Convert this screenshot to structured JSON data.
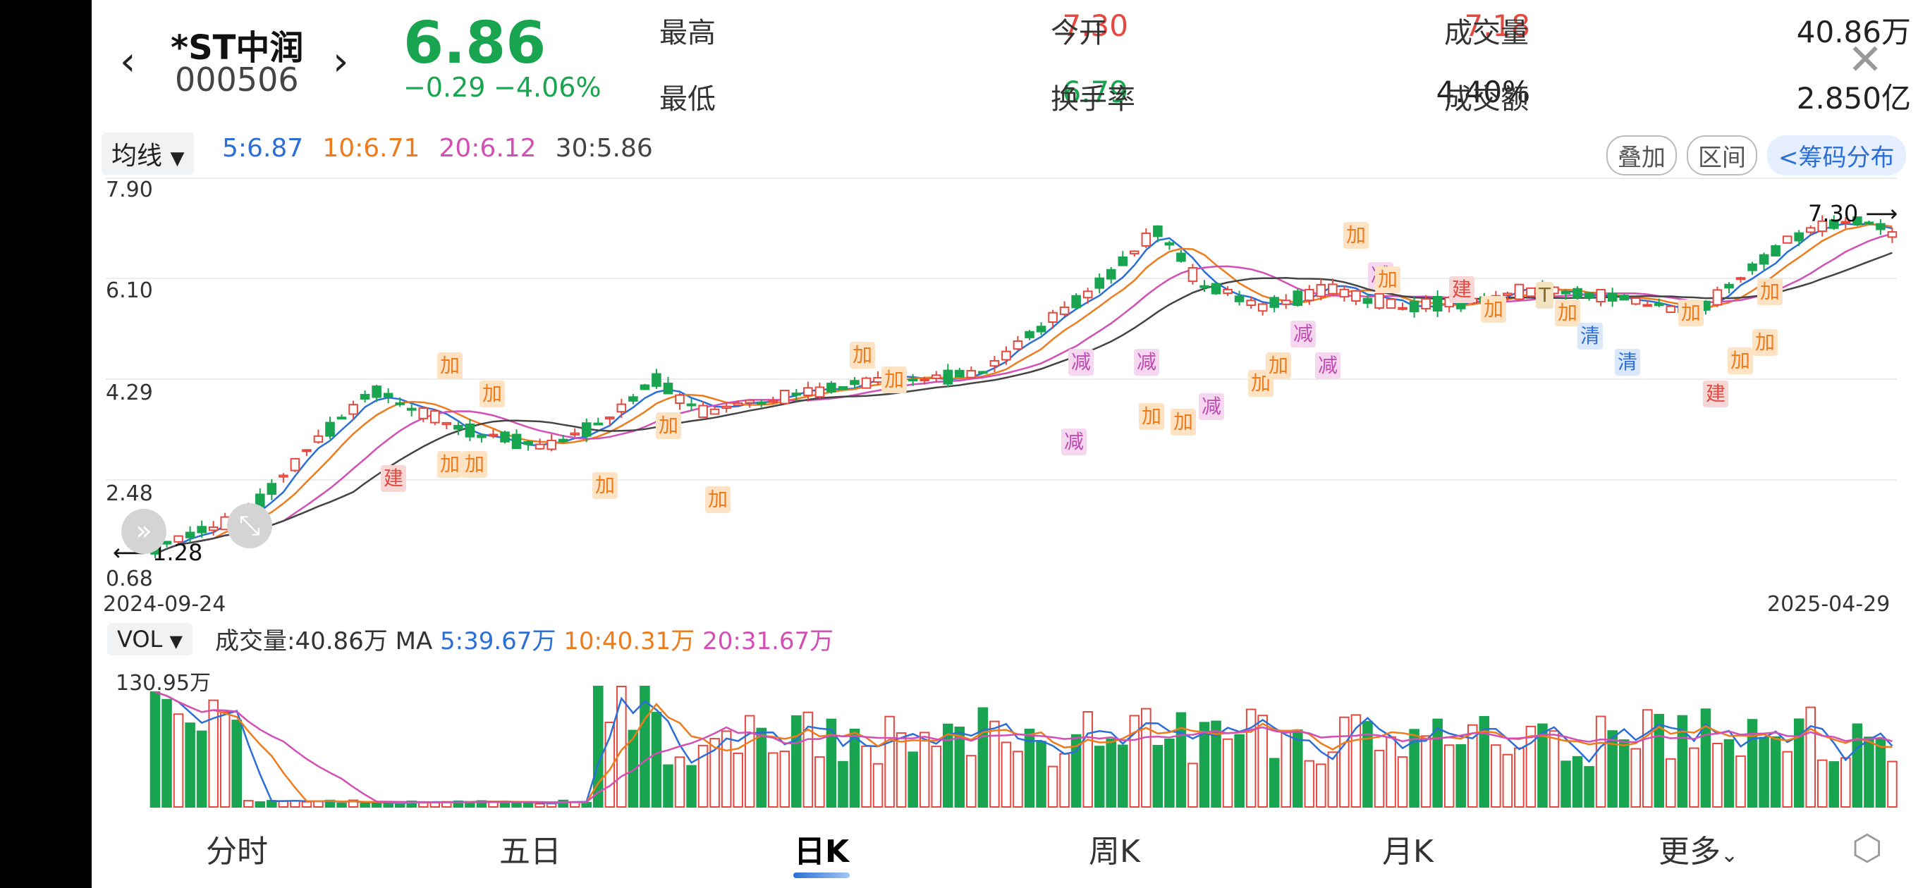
{
  "header": {
    "back_glyph": "‹",
    "forward_glyph": "›",
    "stock_name": "*ST中润",
    "stock_code": "000506",
    "price": "6.86",
    "change": "−0.29",
    "change_pct": "−4.06%",
    "close_glyph": "✕"
  },
  "stats": [
    {
      "label": "最高",
      "value": "7.30",
      "color": "red"
    },
    {
      "label": "今开",
      "value": "7.18",
      "color": "red"
    },
    {
      "label": "成交量",
      "value": "40.86万",
      "color": "dark"
    },
    {
      "label": "最低",
      "value": "6.79",
      "color": "green"
    },
    {
      "label": "换手率",
      "value": "4.40%",
      "color": "dark"
    },
    {
      "label": "成交额",
      "value": "2.850亿",
      "color": "dark"
    }
  ],
  "ma_bar": {
    "selector": "均线",
    "ma5": "5:6.87",
    "ma10": "10:6.71",
    "ma20": "20:6.12",
    "ma30": "30:5.86",
    "buttons": [
      "叠加",
      "区间",
      "<筹码分布"
    ]
  },
  "colors": {
    "up": "#e5483f",
    "down": "#19a550",
    "ma5": "#2b6fd6",
    "ma10": "#ee7b1c",
    "ma20": "#d24fb5",
    "ma30": "#444444"
  },
  "price_axis": [
    "7.90",
    "6.10",
    "4.29",
    "2.48",
    "0.68"
  ],
  "date_start": "2024-09-24",
  "date_end": "2025-04-29",
  "high_marker": "7.30",
  "low_marker": "1.28",
  "vol_bar": {
    "selector": "VOL",
    "text": "成交量:40.86万",
    "ma_label": "MA",
    "ma5": "5:39.67万",
    "ma10": "10:40.31万",
    "ma20": "20:31.67万",
    "max": "130.95万"
  },
  "tabs": [
    "分时",
    "五日",
    "日K",
    "周K",
    "月K",
    "更多"
  ],
  "active_tab": "日K",
  "settings_icon": "hexagon-settings-icon",
  "chart_data": {
    "type": "candlestick",
    "title": "",
    "ylim": [
      0.68,
      7.9
    ],
    "x_start": "2024-09-24",
    "x_end": "2025-04-29",
    "trade_markers": [
      "建",
      "加",
      "加",
      "加",
      "加",
      "加",
      "加",
      "加",
      "加",
      "加",
      "减",
      "减",
      "减",
      "加",
      "加",
      "减",
      "加",
      "加",
      "减",
      "减",
      "加",
      "减",
      "加",
      "建",
      "加",
      "T",
      "加",
      "清",
      "清",
      "加",
      "建",
      "加",
      "加",
      "加"
    ]
  }
}
